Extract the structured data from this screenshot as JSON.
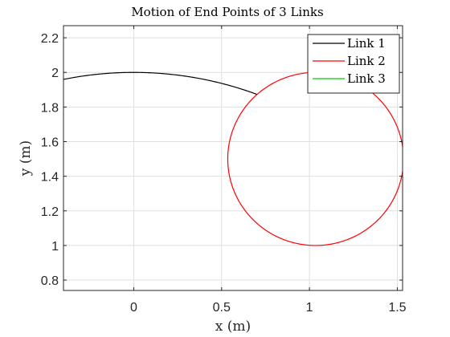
{
  "chart_data": {
    "type": "line",
    "title": "Motion of End Points of 3 Links",
    "xlabel": "x (m)",
    "ylabel": "y (m)",
    "xlim": [
      -0.4,
      1.53
    ],
    "ylim": [
      0.74,
      2.27
    ],
    "x_ticks": [
      0,
      0.5,
      1,
      1.5
    ],
    "x_tick_labels": [
      "0",
      "0.5",
      "1",
      "1.5"
    ],
    "y_ticks": [
      0.8,
      1.0,
      1.2,
      1.4,
      1.6,
      1.8,
      2.0,
      2.2
    ],
    "y_tick_labels": [
      "0.8",
      "1",
      "1.2",
      "1.4",
      "1.6",
      "1.8",
      "2",
      "2.2"
    ],
    "grid": true,
    "legend_position": "top-right",
    "series": [
      {
        "name": "Link 1",
        "color": "#000000",
        "shape": "arc",
        "center": [
          0,
          0
        ],
        "radius": 2.0,
        "x_range": [
          -0.4,
          0.7
        ]
      },
      {
        "name": "Link 2",
        "color": "#ff0000",
        "shape": "circle",
        "center": [
          1.035,
          1.5
        ],
        "radius": 0.5
      },
      {
        "name": "Link 3",
        "color": "#00cc00",
        "shape": "none"
      }
    ]
  }
}
